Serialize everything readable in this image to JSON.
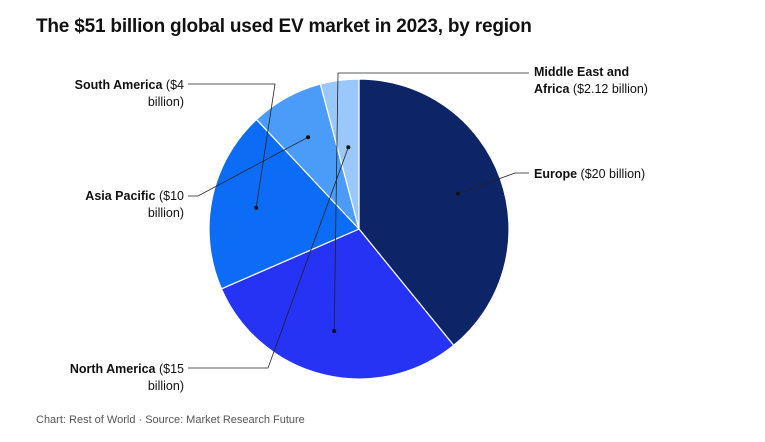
{
  "chart_data": {
    "type": "pie",
    "title": "The $51 billion global used EV market in 2023, by region",
    "slices": [
      {
        "name": "Europe",
        "value": 20,
        "value_text": "($20 billion)",
        "color": "#0d2566"
      },
      {
        "name": "North America",
        "value": 15,
        "value_text": "($15 billion)",
        "color": "#2633f4"
      },
      {
        "name": "Asia Pacific",
        "value": 10,
        "value_text": "($10 billion)",
        "color": "#0d6cf5"
      },
      {
        "name": "South America",
        "value": 4,
        "value_text": "($4 billion)",
        "color": "#4a9cf8"
      },
      {
        "name": "Middle East and Africa",
        "value": 2.12,
        "value_text": "($2.12 billion)",
        "color": "#9ac8fb"
      }
    ],
    "total_text": "$51 billion"
  },
  "labels": {
    "europe": {
      "name": "Europe",
      "value": "($20 billion)"
    },
    "mea": {
      "name_line1": "Middle East and",
      "name_line2": "Africa",
      "value": "($2.12 billion)"
    },
    "south_america": {
      "name": "South America",
      "value_line1": "($4",
      "value_line2": "billion)"
    },
    "asia_pacific": {
      "name": "Asia Pacific",
      "value_line1": "($10",
      "value_line2": "billion)"
    },
    "north_america": {
      "name": "North America",
      "value_line1": "($15",
      "value_line2": "billion)"
    }
  },
  "footer": "Chart: Rest of World · Source: Market Research Future"
}
